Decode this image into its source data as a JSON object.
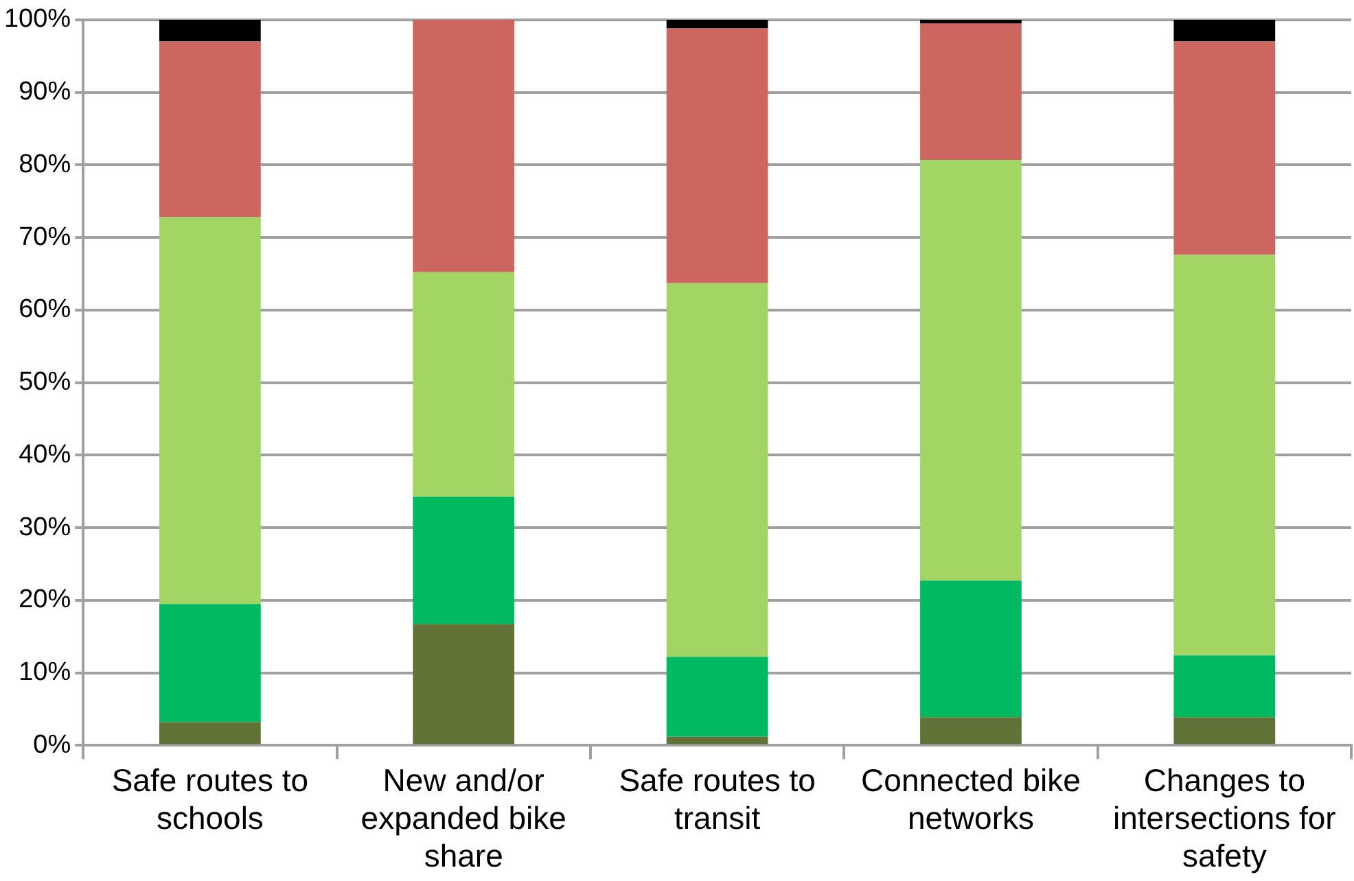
{
  "chart_data": {
    "type": "bar",
    "stacked": true,
    "categories": [
      "Safe routes to schools",
      "New and/or expanded bike share",
      "Safe routes to transit",
      "Connected bike networks",
      "Changes to intersections for safety"
    ],
    "series": [
      {
        "color": "#617236",
        "values": [
          3.2,
          16.7,
          1.2,
          3.9,
          3.9
        ]
      },
      {
        "color": "#00b960",
        "values": [
          16.3,
          17.6,
          11.0,
          18.8,
          8.5
        ]
      },
      {
        "color": "#a2d563",
        "values": [
          53.3,
          30.9,
          51.5,
          58.0,
          55.2
        ]
      },
      {
        "color": "#cd665e",
        "values": [
          24.2,
          34.8,
          35.1,
          18.8,
          29.4
        ]
      },
      {
        "color": "#000000",
        "values": [
          3.0,
          0,
          1.2,
          0.5,
          3.0
        ]
      }
    ],
    "ylim": [
      0,
      100
    ],
    "yticks": [
      {
        "value": 0,
        "label": "0%"
      },
      {
        "value": 10,
        "label": "10%"
      },
      {
        "value": 20,
        "label": "20%"
      },
      {
        "value": 30,
        "label": "30%"
      },
      {
        "value": 40,
        "label": "40%"
      },
      {
        "value": 50,
        "label": "50%"
      },
      {
        "value": 60,
        "label": "60%"
      },
      {
        "value": 70,
        "label": "70%"
      },
      {
        "value": 80,
        "label": "80%"
      },
      {
        "value": 90,
        "label": "90%"
      },
      {
        "value": 100,
        "label": "100%"
      }
    ],
    "grid": "y",
    "legend": false
  }
}
